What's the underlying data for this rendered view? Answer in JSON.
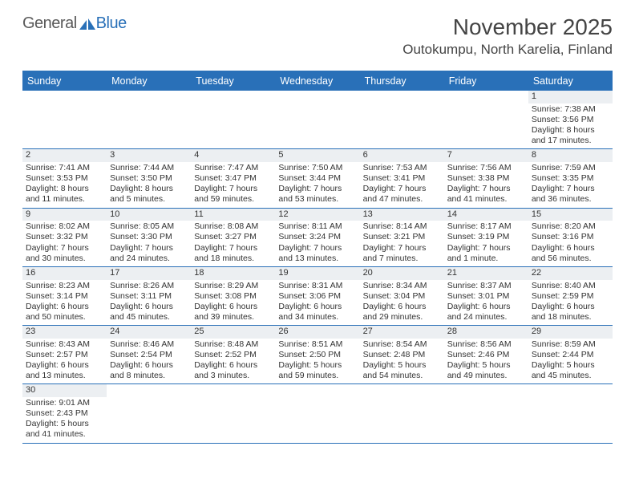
{
  "logo": {
    "part1": "General",
    "part2": "Blue"
  },
  "title": {
    "month": "November 2025",
    "location": "Outokumpu, North Karelia, Finland"
  },
  "weekdays": [
    "Sunday",
    "Monday",
    "Tuesday",
    "Wednesday",
    "Thursday",
    "Friday",
    "Saturday"
  ],
  "colors": {
    "header_bg": "#2970b8",
    "header_fg": "#ffffff",
    "daynum_bg": "#eceff2",
    "border": "#2970b8",
    "logo_blue": "#2970b8",
    "logo_gray": "#5a5a5a"
  },
  "weeks": [
    [
      null,
      null,
      null,
      null,
      null,
      null,
      {
        "n": "1",
        "sr": "Sunrise: 7:38 AM",
        "ss": "Sunset: 3:56 PM",
        "d1": "Daylight: 8 hours",
        "d2": "and 17 minutes."
      }
    ],
    [
      {
        "n": "2",
        "sr": "Sunrise: 7:41 AM",
        "ss": "Sunset: 3:53 PM",
        "d1": "Daylight: 8 hours",
        "d2": "and 11 minutes."
      },
      {
        "n": "3",
        "sr": "Sunrise: 7:44 AM",
        "ss": "Sunset: 3:50 PM",
        "d1": "Daylight: 8 hours",
        "d2": "and 5 minutes."
      },
      {
        "n": "4",
        "sr": "Sunrise: 7:47 AM",
        "ss": "Sunset: 3:47 PM",
        "d1": "Daylight: 7 hours",
        "d2": "and 59 minutes."
      },
      {
        "n": "5",
        "sr": "Sunrise: 7:50 AM",
        "ss": "Sunset: 3:44 PM",
        "d1": "Daylight: 7 hours",
        "d2": "and 53 minutes."
      },
      {
        "n": "6",
        "sr": "Sunrise: 7:53 AM",
        "ss": "Sunset: 3:41 PM",
        "d1": "Daylight: 7 hours",
        "d2": "and 47 minutes."
      },
      {
        "n": "7",
        "sr": "Sunrise: 7:56 AM",
        "ss": "Sunset: 3:38 PM",
        "d1": "Daylight: 7 hours",
        "d2": "and 41 minutes."
      },
      {
        "n": "8",
        "sr": "Sunrise: 7:59 AM",
        "ss": "Sunset: 3:35 PM",
        "d1": "Daylight: 7 hours",
        "d2": "and 36 minutes."
      }
    ],
    [
      {
        "n": "9",
        "sr": "Sunrise: 8:02 AM",
        "ss": "Sunset: 3:32 PM",
        "d1": "Daylight: 7 hours",
        "d2": "and 30 minutes."
      },
      {
        "n": "10",
        "sr": "Sunrise: 8:05 AM",
        "ss": "Sunset: 3:30 PM",
        "d1": "Daylight: 7 hours",
        "d2": "and 24 minutes."
      },
      {
        "n": "11",
        "sr": "Sunrise: 8:08 AM",
        "ss": "Sunset: 3:27 PM",
        "d1": "Daylight: 7 hours",
        "d2": "and 18 minutes."
      },
      {
        "n": "12",
        "sr": "Sunrise: 8:11 AM",
        "ss": "Sunset: 3:24 PM",
        "d1": "Daylight: 7 hours",
        "d2": "and 13 minutes."
      },
      {
        "n": "13",
        "sr": "Sunrise: 8:14 AM",
        "ss": "Sunset: 3:21 PM",
        "d1": "Daylight: 7 hours",
        "d2": "and 7 minutes."
      },
      {
        "n": "14",
        "sr": "Sunrise: 8:17 AM",
        "ss": "Sunset: 3:19 PM",
        "d1": "Daylight: 7 hours",
        "d2": "and 1 minute."
      },
      {
        "n": "15",
        "sr": "Sunrise: 8:20 AM",
        "ss": "Sunset: 3:16 PM",
        "d1": "Daylight: 6 hours",
        "d2": "and 56 minutes."
      }
    ],
    [
      {
        "n": "16",
        "sr": "Sunrise: 8:23 AM",
        "ss": "Sunset: 3:14 PM",
        "d1": "Daylight: 6 hours",
        "d2": "and 50 minutes."
      },
      {
        "n": "17",
        "sr": "Sunrise: 8:26 AM",
        "ss": "Sunset: 3:11 PM",
        "d1": "Daylight: 6 hours",
        "d2": "and 45 minutes."
      },
      {
        "n": "18",
        "sr": "Sunrise: 8:29 AM",
        "ss": "Sunset: 3:08 PM",
        "d1": "Daylight: 6 hours",
        "d2": "and 39 minutes."
      },
      {
        "n": "19",
        "sr": "Sunrise: 8:31 AM",
        "ss": "Sunset: 3:06 PM",
        "d1": "Daylight: 6 hours",
        "d2": "and 34 minutes."
      },
      {
        "n": "20",
        "sr": "Sunrise: 8:34 AM",
        "ss": "Sunset: 3:04 PM",
        "d1": "Daylight: 6 hours",
        "d2": "and 29 minutes."
      },
      {
        "n": "21",
        "sr": "Sunrise: 8:37 AM",
        "ss": "Sunset: 3:01 PM",
        "d1": "Daylight: 6 hours",
        "d2": "and 24 minutes."
      },
      {
        "n": "22",
        "sr": "Sunrise: 8:40 AM",
        "ss": "Sunset: 2:59 PM",
        "d1": "Daylight: 6 hours",
        "d2": "and 18 minutes."
      }
    ],
    [
      {
        "n": "23",
        "sr": "Sunrise: 8:43 AM",
        "ss": "Sunset: 2:57 PM",
        "d1": "Daylight: 6 hours",
        "d2": "and 13 minutes."
      },
      {
        "n": "24",
        "sr": "Sunrise: 8:46 AM",
        "ss": "Sunset: 2:54 PM",
        "d1": "Daylight: 6 hours",
        "d2": "and 8 minutes."
      },
      {
        "n": "25",
        "sr": "Sunrise: 8:48 AM",
        "ss": "Sunset: 2:52 PM",
        "d1": "Daylight: 6 hours",
        "d2": "and 3 minutes."
      },
      {
        "n": "26",
        "sr": "Sunrise: 8:51 AM",
        "ss": "Sunset: 2:50 PM",
        "d1": "Daylight: 5 hours",
        "d2": "and 59 minutes."
      },
      {
        "n": "27",
        "sr": "Sunrise: 8:54 AM",
        "ss": "Sunset: 2:48 PM",
        "d1": "Daylight: 5 hours",
        "d2": "and 54 minutes."
      },
      {
        "n": "28",
        "sr": "Sunrise: 8:56 AM",
        "ss": "Sunset: 2:46 PM",
        "d1": "Daylight: 5 hours",
        "d2": "and 49 minutes."
      },
      {
        "n": "29",
        "sr": "Sunrise: 8:59 AM",
        "ss": "Sunset: 2:44 PM",
        "d1": "Daylight: 5 hours",
        "d2": "and 45 minutes."
      }
    ],
    [
      {
        "n": "30",
        "sr": "Sunrise: 9:01 AM",
        "ss": "Sunset: 2:43 PM",
        "d1": "Daylight: 5 hours",
        "d2": "and 41 minutes."
      },
      null,
      null,
      null,
      null,
      null,
      null
    ]
  ]
}
